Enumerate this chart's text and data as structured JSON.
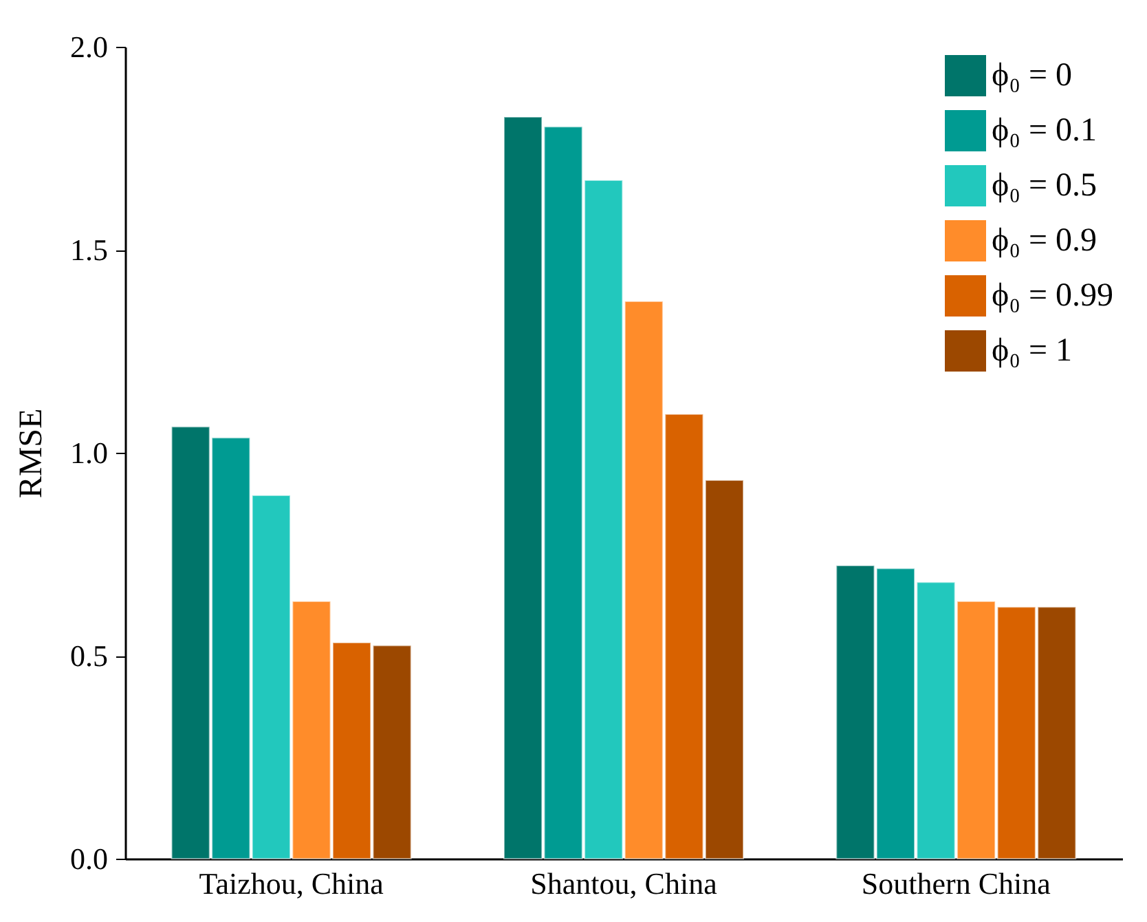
{
  "chart_data": {
    "type": "bar",
    "ylabel": "RMSE",
    "categories": [
      "Taizhou, China",
      "Shantou, China",
      "Southern China"
    ],
    "series": [
      {
        "name": "ϕ₀ = 0",
        "color": "#00756a",
        "values": [
          1.064,
          1.827,
          0.722
        ]
      },
      {
        "name": "ϕ₀ = 0.1",
        "color": "#009b92",
        "values": [
          1.037,
          1.803,
          0.715
        ]
      },
      {
        "name": "ϕ₀ = 0.5",
        "color": "#22c8bd",
        "values": [
          0.895,
          1.671,
          0.681
        ]
      },
      {
        "name": "ϕ₀ = 0.9",
        "color": "#ff8c2a",
        "values": [
          0.634,
          1.373,
          0.634
        ]
      },
      {
        "name": "ϕ₀ = 0.99",
        "color": "#d96200",
        "values": [
          0.532,
          1.095,
          0.62
        ]
      },
      {
        "name": "ϕ₀ = 1",
        "color": "#9c4800",
        "values": [
          0.525,
          0.932,
          0.62
        ]
      }
    ],
    "ylim": [
      0,
      2
    ],
    "yticks": [
      {
        "value": 0,
        "label": "0.0"
      },
      {
        "value": 0.5,
        "label": "0.5"
      },
      {
        "value": 1,
        "label": "1.0"
      },
      {
        "value": 1.5,
        "label": "1.5"
      },
      {
        "value": 2,
        "label": "2.0"
      }
    ],
    "legend": "top right",
    "grid": false
  }
}
